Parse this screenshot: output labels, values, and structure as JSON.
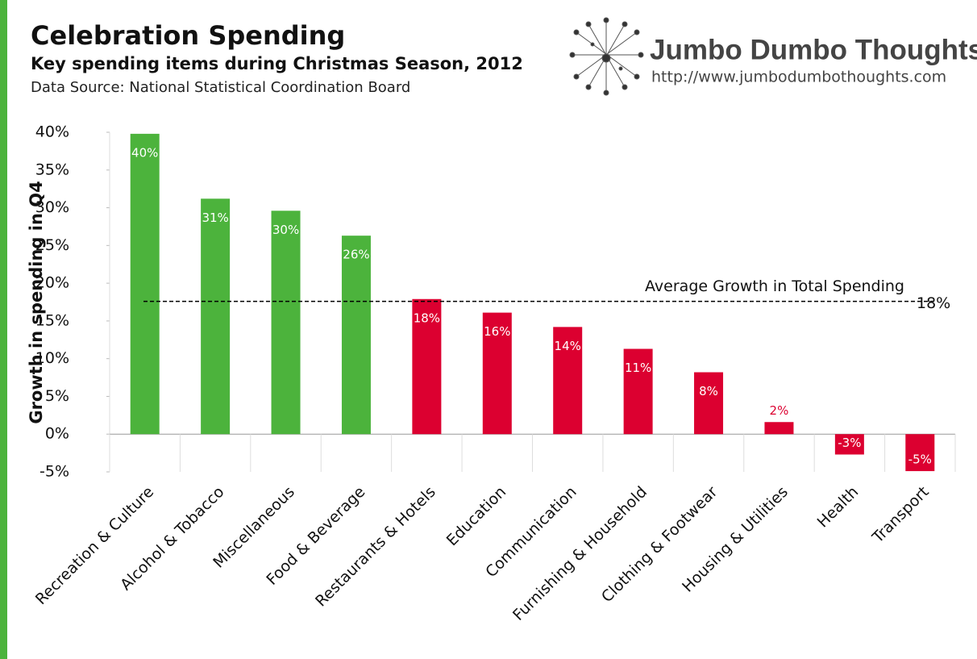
{
  "chart_data": {
    "type": "bar",
    "title": "Celebration Spending",
    "subtitle": "Key spending items during Christmas Season, 2012",
    "source": "Data Source: National Statistical Coordination Board",
    "brand": "Jumbo Dumbo Thoughts",
    "url": "http://www.jumbodumbothoughts.com",
    "y_label": "Growth in spending in Q4",
    "categories": [
      "Recreation & Culture",
      "Alcohol & Tobacco",
      "Miscellaneous",
      "Food & Beverage",
      "Restaurants & Hotels",
      "Education",
      "Communication",
      "Furnishing & Household",
      "Clothing & Footwear",
      "Housing & Utilities",
      "Health",
      "Transport"
    ],
    "values": [
      39.8,
      31.2,
      29.6,
      26.3,
      17.9,
      16.1,
      14.2,
      11.3,
      8.2,
      1.6,
      -2.7,
      -4.9
    ],
    "value_labels": [
      "40%",
      "31%",
      "30%",
      "26%",
      "18%",
      "16%",
      "14%",
      "11%",
      "8%",
      "2%",
      "-3%",
      "-5%"
    ],
    "colors": [
      "#4cb33c",
      "#4cb33c",
      "#4cb33c",
      "#4cb33c",
      "#dc0030",
      "#dc0030",
      "#dc0030",
      "#dc0030",
      "#dc0030",
      "#dc0030",
      "#dc0030",
      "#dc0030"
    ],
    "average": {
      "label": "Average Growth in Total Spending",
      "value": 17.6,
      "value_label": "18%"
    },
    "ylim": [
      -5,
      40
    ],
    "yticks": [
      {
        "value": -5,
        "label": "-5%"
      },
      {
        "value": 0,
        "label": "0%"
      },
      {
        "value": 5,
        "label": "5%"
      },
      {
        "value": 10,
        "label": "10%"
      },
      {
        "value": 15,
        "label": "15%"
      },
      {
        "value": 20,
        "label": "20%"
      },
      {
        "value": 25,
        "label": "25%"
      },
      {
        "value": 30,
        "label": "30%"
      },
      {
        "value": 35,
        "label": "35%"
      },
      {
        "value": 40,
        "label": "40%"
      }
    ]
  }
}
